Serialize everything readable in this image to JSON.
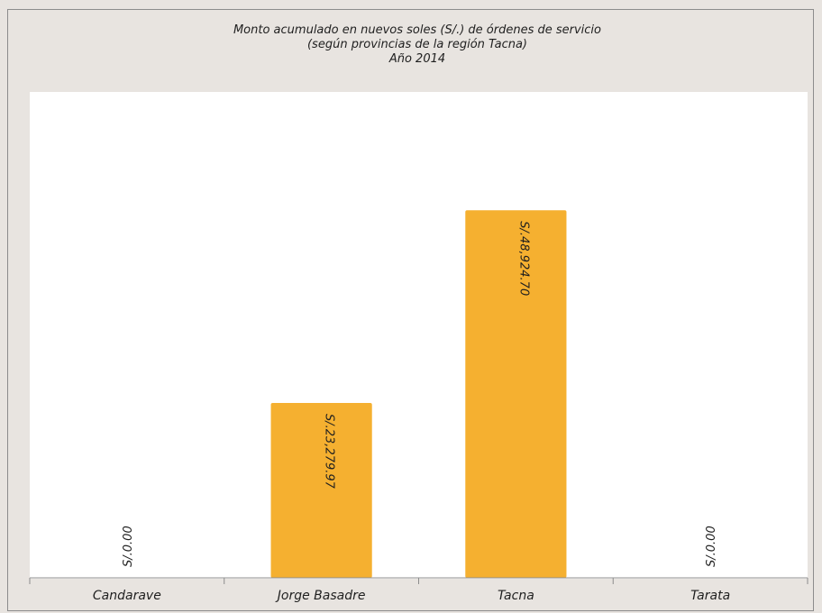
{
  "chart_data": {
    "type": "bar",
    "title": [
      "Monto acumulado en nuevos soles (S/.) de órdenes de servicio",
      "(según provincias de la región Tacna)",
      "Año 2014"
    ],
    "xlabel": "",
    "ylabel": "",
    "categories": [
      "Candarave",
      "Jorge Basadre",
      "Tacna",
      "Tarata"
    ],
    "values": [
      0,
      23279.97,
      48924.7,
      0
    ],
    "data_labels": [
      "S/.0.00",
      "S/.23,279.97",
      "S/.48,924.70",
      "S/.0.00"
    ],
    "ylim": [
      0,
      60000
    ],
    "grid": false,
    "legend": "none",
    "colors": {
      "bar": "#f5b030",
      "page_background": "#e8e4e0",
      "plot_background": "#ffffff",
      "axis": "#8c8c8c",
      "text": "#1f1f1f"
    }
  }
}
